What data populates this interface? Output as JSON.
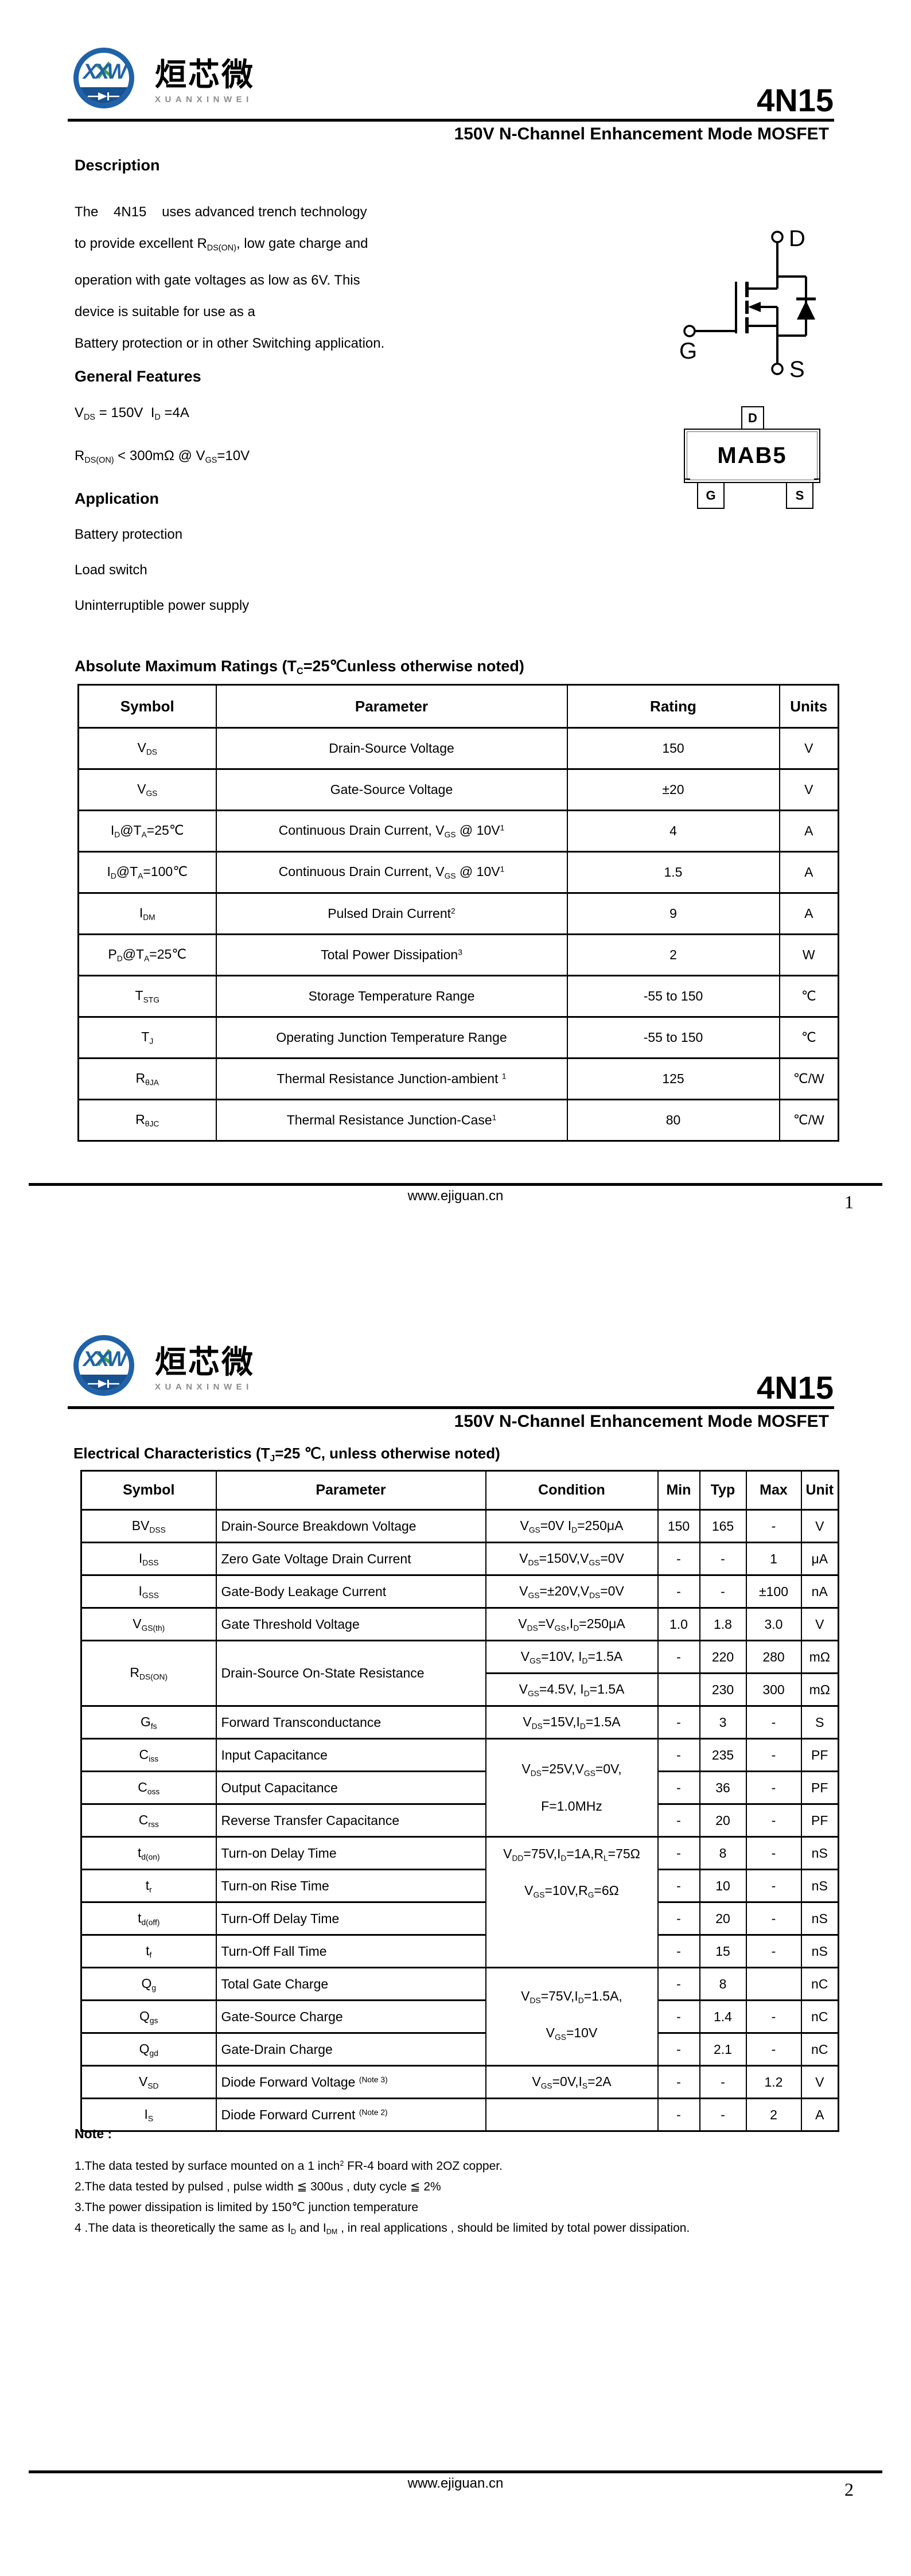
{
  "colors": {
    "logo_blue": "#1f62a9",
    "logo_band": "#17518f",
    "logo_green": "#3ea44b",
    "logo_gray": "#8c8c8c"
  },
  "brand": {
    "logo_monogram": "XXW",
    "logo_cn": "烜芯微",
    "logo_en": "XUANXINWEI"
  },
  "header": {
    "part_number": "4N15",
    "subtitle": "150V N-Channel Enhancement Mode MOSFET"
  },
  "page1": {
    "description": {
      "heading": "Description",
      "lines": [
        "The    4N15    uses advanced trench technology",
        "to provide excellent R~DS(ON)~, low gate charge and",
        "operation with gate voltages as low as 6V. This",
        "device is suitable for use as a",
        "Battery protection or in other Switching application."
      ]
    },
    "general_features": {
      "heading": "General Features",
      "lines": [
        "V~DS~ = 150V  I~D~ =4A",
        "R~DS(ON)~ < 300mΩ @ V~GS~=10V"
      ]
    },
    "application": {
      "heading": "Application",
      "items": [
        "Battery protection",
        "Load switch",
        "Uninterruptible power supply"
      ]
    },
    "mosfet_symbol": {
      "labels": {
        "drain": "D",
        "gate": "G",
        "source": "S"
      }
    },
    "package": {
      "name": "MAB5",
      "pins": {
        "top": "D",
        "bottom_left": "G",
        "bottom_right": "S"
      }
    },
    "abs_max": {
      "title": "Absolute Maximum Ratings (T~C~=25℃unless otherwise noted)",
      "headers": [
        "Symbol",
        "Parameter",
        "Rating",
        "Units"
      ],
      "rows": [
        [
          "V~DS~",
          "Drain-Source Voltage",
          "150",
          "V"
        ],
        [
          "V~GS~",
          "Gate-Source Voltage",
          "±20",
          "V"
        ],
        [
          "I~D~@T~A~=25℃",
          "Continuous Drain Current, V~GS~ @ 10V^1^",
          "4",
          "A"
        ],
        [
          "I~D~@T~A~=100℃",
          "Continuous Drain Current, V~GS~ @ 10V^1^",
          "1.5",
          "A"
        ],
        [
          "I~DM~",
          "Pulsed Drain Current^2^",
          "9",
          "A"
        ],
        [
          "P~D~@T~A~=25℃",
          "Total Power Dissipation^3^",
          "2",
          "W"
        ],
        [
          "T~STG~",
          "Storage Temperature Range",
          "-55 to 150",
          "℃"
        ],
        [
          "T~J~",
          "Operating Junction Temperature Range",
          "-55 to 150",
          "℃"
        ],
        [
          "R~θJA~",
          "Thermal Resistance Junction-ambient ^1^",
          "125",
          "℃/W"
        ],
        [
          "R~θJC~",
          "Thermal Resistance Junction-Case^1^",
          "80",
          "℃/W"
        ]
      ]
    },
    "footer": {
      "url": "www.ejiguan.cn",
      "page": "1"
    }
  },
  "page2": {
    "elec": {
      "title": "Electrical Characteristics (T~J~=25 ℃, unless otherwise noted)",
      "headers": [
        "Symbol",
        "Parameter",
        "Condition",
        "Min",
        "Typ",
        "Max",
        "Unit"
      ],
      "rows": [
        [
          "BV~DSS~",
          "Drain-Source Breakdown Voltage",
          "V~GS~=0V I~D~=250μA",
          "150",
          "165",
          "-",
          "V"
        ],
        [
          "I~DSS~",
          "Zero Gate Voltage Drain Current",
          "V~DS~=150V,V~GS~=0V",
          "-",
          "-",
          "1",
          "μA"
        ],
        [
          "I~GSS~",
          "Gate-Body Leakage Current",
          "V~GS~=±20V,V~DS~=0V",
          "-",
          "-",
          "±100",
          "nA"
        ],
        [
          "V~GS(th)~",
          "Gate Threshold Voltage",
          "V~DS~=V~GS~,I~D~=250μA",
          "1.0",
          "1.8",
          "3.0",
          "V"
        ],
        [
          {
            "t": "R~DS(ON)~",
            "rs": 2
          },
          {
            "t": "Drain-Source On-State Resistance",
            "rs": 2
          },
          "V~GS~=10V, I~D~=1.5A",
          "-",
          "220",
          "280",
          "mΩ"
        ],
        [
          null,
          null,
          "V~GS~=4.5V, I~D~=1.5A",
          "",
          "230",
          "300",
          "mΩ"
        ],
        [
          "G~fs~",
          "Forward Transconductance",
          "V~DS~=15V,I~D~=1.5A",
          "-",
          "3",
          "-",
          "S"
        ],
        [
          "C~iss~",
          "Input Capacitance",
          {
            "t": "V~DS~=25V,V~GS~=0V,\nF=1.0MHz",
            "rs": 3
          },
          "-",
          "235",
          "-",
          "PF"
        ],
        [
          "C~oss~",
          "Output Capacitance",
          null,
          "-",
          "36",
          "-",
          "PF"
        ],
        [
          "C~rss~",
          "Reverse Transfer Capacitance",
          null,
          "-",
          "20",
          "-",
          "PF"
        ],
        [
          "t~d(on)~",
          "Turn-on Delay Time",
          {
            "t": "V~DD~=75V,I~D~=1A,R~L~=75Ω\nV~GS~=10V,R~G~=6Ω",
            "rs": 4
          },
          "-",
          "8",
          "-",
          "nS"
        ],
        [
          "t~r~",
          "Turn-on Rise Time",
          null,
          "-",
          "10",
          "-",
          "nS"
        ],
        [
          "t~d(off)~",
          "Turn-Off Delay Time",
          null,
          "-",
          "20",
          "-",
          "nS"
        ],
        [
          "t~f~",
          "Turn-Off Fall Time",
          null,
          "-",
          "15",
          "-",
          "nS"
        ],
        [
          "Q~g~",
          "Total Gate Charge",
          {
            "t": "V~DS~=75V,I~D~=1.5A,\nV~GS~=10V",
            "rs": 3
          },
          "-",
          "8",
          "",
          "nC"
        ],
        [
          "Q~gs~",
          "Gate-Source Charge",
          null,
          "-",
          "1.4",
          "-",
          "nC"
        ],
        [
          "Q~gd~",
          "Gate-Drain Charge",
          null,
          "-",
          "2.1",
          "-",
          "nC"
        ],
        [
          "V~SD~",
          "Diode Forward Voltage ^(Note 3)^",
          "V~GS~=0V,I~S~=2A",
          "-",
          "-",
          "1.2",
          "V"
        ],
        [
          "I~S~",
          "Diode Forward Current ^(Note 2)^",
          "",
          "-",
          "-",
          "2",
          "A"
        ]
      ]
    },
    "notes": {
      "heading": "Note :",
      "items": [
        "1.The data tested by surface mounted on a 1 inch^2^ FR-4 board with 2OZ copper.",
        "2.The data tested by pulsed , pulse width ≦ 300us , duty cycle ≦ 2%",
        "3.The power dissipation is limited by 150℃ junction temperature",
        "4 .The data is theoretically the same as I~D~ and I~DM~ , in real applications , should be limited by total power dissipation."
      ]
    },
    "footer": {
      "url": "www.ejiguan.cn",
      "page": "2"
    }
  }
}
